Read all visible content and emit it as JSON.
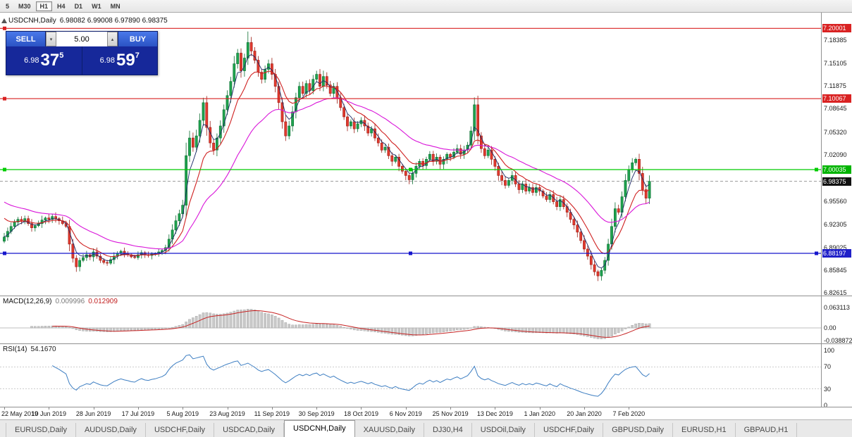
{
  "toolbar": {
    "timeframes": [
      "5",
      "M30",
      "H1",
      "H4",
      "D1",
      "W1",
      "MN"
    ],
    "active_timeframe": "H1"
  },
  "chart": {
    "symbol": "USDCNH,Daily",
    "quote_line": "6.98082 6.99008 6.97890 6.98375"
  },
  "trade_panel": {
    "sell_label": "SELL",
    "buy_label": "BUY",
    "volume": "5.00",
    "spin_down_icon": "▾",
    "spin_up_icon": "▴",
    "sell_price": {
      "small": "6.98",
      "big": "37",
      "sup": "5"
    },
    "buy_price": {
      "small": "6.98",
      "big": "59",
      "sup": "7"
    }
  },
  "indicators": {
    "macd": {
      "name": "MACD(12,26,9)",
      "value_main": "0.009996",
      "value_signal": "0.012909"
    },
    "rsi": {
      "name": "RSI(14)",
      "value": "54.1670"
    }
  },
  "price_axis": {
    "ticks": [
      {
        "text": "7.18385",
        "price": 7.18385
      },
      {
        "text": "7.15105",
        "price": 7.15105
      },
      {
        "text": "7.11875",
        "price": 7.11875
      },
      {
        "text": "7.08645",
        "price": 7.08645
      },
      {
        "text": "7.05320",
        "price": 7.0532
      },
      {
        "text": "7.02090",
        "price": 7.0209
      },
      {
        "text": "6.95560",
        "price": 6.9556
      },
      {
        "text": "6.92305",
        "price": 6.92305
      },
      {
        "text": "6.89025",
        "price": 6.89025
      },
      {
        "text": "6.85845",
        "price": 6.85845
      },
      {
        "text": "6.82615",
        "price": 6.82615
      }
    ],
    "badges": [
      {
        "text": "7.20001",
        "price": 7.20001,
        "bg": "#d92222"
      },
      {
        "text": "7.10067",
        "price": 7.10067,
        "bg": "#d92222"
      },
      {
        "text": "7.00035",
        "price": 7.00035,
        "bg": "#00b400"
      },
      {
        "text": "6.98375",
        "price": 6.98375,
        "bg": "#111111"
      },
      {
        "text": "6.88197",
        "price": 6.88197,
        "bg": "#2020c8"
      }
    ]
  },
  "macd_axis": [
    {
      "text": "0.063113",
      "value": 0.063113
    },
    {
      "text": "0.00",
      "value": 0
    },
    {
      "text": "-0.038872",
      "value": -0.038872
    }
  ],
  "rsi_axis": [
    {
      "text": "100",
      "value": 100
    },
    {
      "text": "70",
      "value": 70
    },
    {
      "text": "30",
      "value": 30
    },
    {
      "text": "0",
      "value": 0
    }
  ],
  "tabs": {
    "items": [
      "EURUSD,Daily",
      "AUDUSD,Daily",
      "USDCHF,Daily",
      "USDCAD,Daily",
      "USDCNH,Daily",
      "XAUUSD,Daily",
      "DJ30,H4",
      "USDOil,Daily",
      "USDCHF,Daily",
      "GBPUSD,Daily",
      "EURUSD,H1",
      "GBPAUD,H1"
    ],
    "active_index": 4
  },
  "chart_data": {
    "type": "candlestick",
    "symbol": "USDCNH",
    "timeframe": "Daily",
    "ohlc_last": {
      "open": 6.98082,
      "high": 6.99008,
      "low": 6.9789,
      "close": 6.98375
    },
    "ylim": [
      6.8226,
      7.2103
    ],
    "x_labels": [
      "22 May 2019",
      "10 Jun 2019",
      "28 Jun 2019",
      "17 Jul 2019",
      "5 Aug 2019",
      "23 Aug 2019",
      "11 Sep 2019",
      "30 Sep 2019",
      "18 Oct 2019",
      "6 Nov 2019",
      "25 Nov 2019",
      "13 Dec 2019",
      "1 Jan 2020",
      "20 Jan 2020",
      "7 Feb 2020"
    ],
    "x_label_indices": [
      0,
      13,
      26,
      39,
      52,
      65,
      78,
      91,
      104,
      117,
      130,
      143,
      156,
      169,
      182
    ],
    "closes": [
      6.905,
      6.913,
      6.92,
      6.926,
      6.93,
      6.927,
      6.931,
      6.924,
      6.918,
      6.921,
      6.924,
      6.929,
      6.932,
      6.93,
      6.934,
      6.931,
      6.928,
      6.924,
      6.92,
      6.895,
      6.875,
      6.863,
      6.872,
      6.876,
      6.88,
      6.877,
      6.884,
      6.878,
      6.872,
      6.869,
      6.868,
      6.873,
      6.878,
      6.882,
      6.885,
      6.882,
      6.88,
      6.877,
      6.876,
      6.88,
      6.883,
      6.88,
      6.879,
      6.881,
      6.882,
      6.884,
      6.886,
      6.89,
      6.902,
      6.915,
      6.928,
      6.938,
      6.95,
      7.02,
      7.045,
      7.032,
      7.048,
      7.07,
      7.095,
      7.06,
      7.038,
      7.028,
      7.045,
      7.062,
      7.085,
      7.105,
      7.125,
      7.15,
      7.165,
      7.14,
      7.158,
      7.18,
      7.168,
      7.155,
      7.138,
      7.128,
      7.142,
      7.15,
      7.135,
      7.118,
      7.095,
      7.068,
      7.048,
      7.062,
      7.082,
      7.102,
      7.118,
      7.108,
      7.122,
      7.112,
      7.128,
      7.135,
      7.118,
      7.132,
      7.12,
      7.108,
      7.118,
      7.102,
      7.088,
      7.075,
      7.062,
      7.068,
      7.058,
      7.065,
      7.07,
      7.062,
      7.052,
      7.058,
      7.045,
      7.038,
      7.028,
      7.032,
      7.02,
      7.012,
      7.018,
      7.005,
      6.998,
      6.992,
      6.986,
      6.995,
      7.005,
      7.012,
      7.006,
      7.015,
      7.022,
      7.012,
      7.018,
      7.008,
      7.015,
      7.022,
      7.018,
      7.025,
      7.03,
      7.022,
      7.028,
      7.035,
      7.055,
      7.092,
      7.048,
      7.03,
      7.02,
      7.028,
      7.015,
      7.005,
      6.992,
      6.985,
      6.978,
      6.985,
      6.992,
      6.98,
      6.972,
      6.98,
      6.97,
      6.975,
      6.968,
      6.975,
      6.97,
      6.963,
      6.958,
      6.965,
      6.955,
      6.948,
      6.958,
      6.948,
      6.94,
      6.93,
      6.922,
      6.912,
      6.9,
      6.888,
      6.878,
      6.866,
      6.856,
      6.85,
      6.858,
      6.872,
      6.895,
      6.92,
      6.945,
      6.94,
      6.962,
      6.985,
      7.0,
      7.01,
      7.015,
      6.995,
      6.972,
      6.96,
      6.98375
    ],
    "extremes": {
      "high": 7.1955,
      "low": 6.8428
    },
    "hlines": [
      {
        "price": 7.20001,
        "color": "#d92222",
        "handles": "left"
      },
      {
        "price": 7.10067,
        "color": "#d92222",
        "handles": "left"
      },
      {
        "price": 7.00035,
        "color": "#00cc00",
        "handles": "left-center-right"
      },
      {
        "price": 6.88197,
        "color": "#1515cc",
        "handles": "left-center-right"
      }
    ],
    "last_price_line": 6.98375,
    "macd_params": [
      12,
      26,
      9
    ],
    "rsi_period": 14,
    "rsi_levels": [
      70,
      30
    ]
  },
  "colors": {
    "up": "#1fa34f",
    "up_stroke": "#0c6e31",
    "down": "#e23a2e",
    "down_stroke": "#9c1c14",
    "ma_fast": "#cf2020",
    "ma_slow": "#d915d9",
    "ma_quick": "#1c2a66",
    "rsi_line": "#3d7ec2",
    "hist_fill": "#c9c9c9",
    "hist_stroke": "#a0a0a0",
    "signal": "#c62222",
    "last_price": "#8a8a8a"
  }
}
